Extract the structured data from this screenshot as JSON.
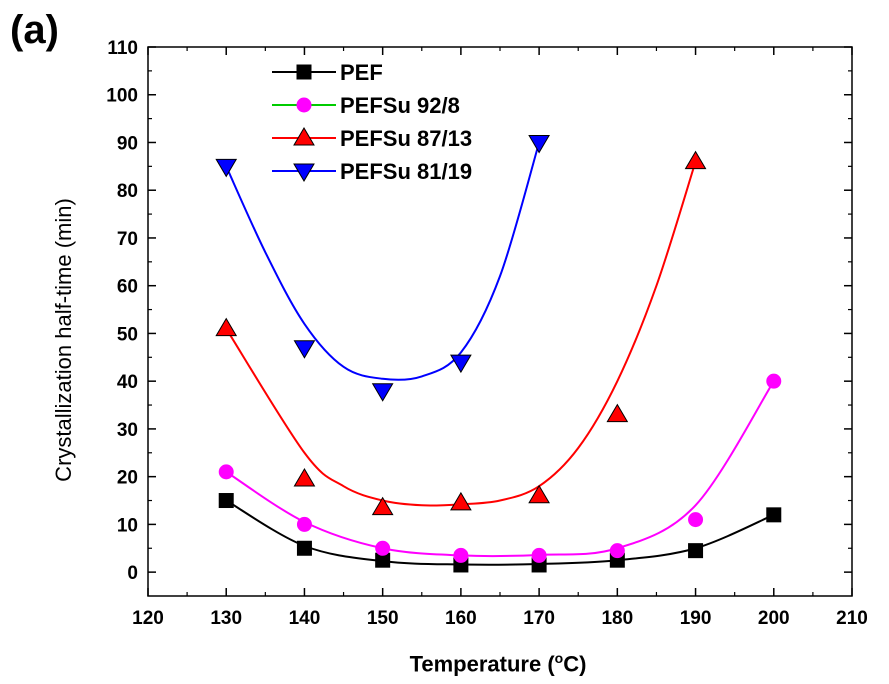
{
  "panel_label": "(a)",
  "colors": {
    "PEF": "#000000",
    "PEFSu 92/8": "#ff00ff",
    "PEFSu 87/13": "#ff0000",
    "PEFSu 81/19": "#0000ff",
    "legend_PEFSu 92/8_line": "#00cc00"
  },
  "chart_data": {
    "type": "scatter",
    "ylabel": "Crystallization half-time (min)",
    "xlabel_main": "Temperature (",
    "xlabel_sup": "o",
    "xlabel_tail": "C)",
    "xlim": [
      120,
      210
    ],
    "ylim": [
      -5,
      110
    ],
    "xticks": [
      120,
      130,
      140,
      150,
      160,
      170,
      180,
      190,
      200,
      210
    ],
    "yticks": [
      0,
      10,
      20,
      30,
      40,
      50,
      60,
      70,
      80,
      90,
      100,
      110
    ],
    "grid": false,
    "legend_position": "top-left",
    "series": [
      {
        "name": "PEF",
        "marker": "square",
        "x": [
          130,
          140,
          150,
          160,
          170,
          180,
          190,
          200
        ],
        "y": [
          15,
          5,
          2.5,
          1.5,
          1.5,
          2.5,
          4.5,
          12
        ]
      },
      {
        "name": "PEFSu 92/8",
        "marker": "circle",
        "x": [
          130,
          140,
          150,
          160,
          170,
          180,
          190,
          200
        ],
        "y": [
          21,
          10,
          5,
          3.5,
          3.5,
          4.5,
          11,
          40
        ]
      },
      {
        "name": "PEFSu 87/13",
        "marker": "triangle-up",
        "x": [
          130,
          140,
          150,
          160,
          170,
          180,
          190
        ],
        "y": [
          51,
          19.5,
          13.5,
          14.5,
          16,
          33,
          86
        ]
      },
      {
        "name": "PEFSu 81/19",
        "marker": "triangle-down",
        "x": [
          130,
          140,
          150,
          160,
          170
        ],
        "y": [
          85,
          47,
          38,
          44,
          90
        ]
      }
    ],
    "fit_curves": [
      {
        "series": "PEF",
        "x": [
          130,
          140,
          150,
          160,
          170,
          180,
          190,
          200
        ],
        "y": [
          15,
          5.5,
          2.3,
          1.6,
          1.7,
          2.5,
          5,
          12
        ]
      },
      {
        "series": "PEFSu 92/8",
        "x": [
          130,
          140,
          150,
          160,
          170,
          180,
          190,
          200
        ],
        "y": [
          21,
          10.5,
          5,
          3.5,
          3.6,
          5,
          14,
          40
        ]
      },
      {
        "series": "PEFSu 87/13",
        "x": [
          130,
          140,
          145,
          150,
          155,
          160,
          165,
          170,
          175,
          180,
          185,
          190
        ],
        "y": [
          51,
          25,
          18,
          15,
          14,
          14.2,
          15,
          18,
          26,
          40,
          60,
          86
        ]
      },
      {
        "series": "PEFSu 81/19",
        "x": [
          130,
          135,
          140,
          145,
          150,
          155,
          160,
          165,
          170
        ],
        "y": [
          85,
          67,
          52,
          43,
          40.5,
          41,
          46,
          62,
          90
        ]
      }
    ]
  }
}
